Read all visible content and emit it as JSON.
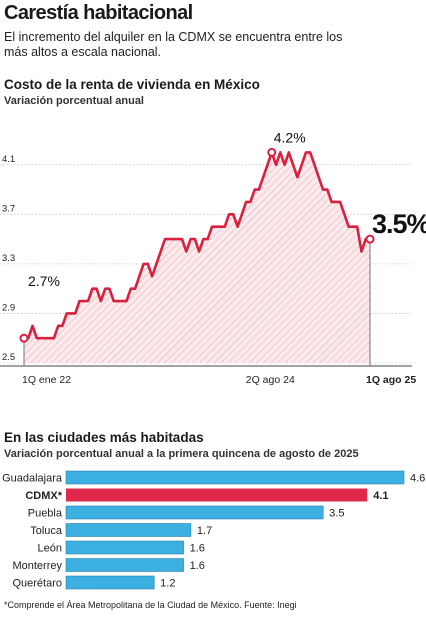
{
  "header": {
    "title": "Carestía habitacional",
    "intro": "El incremento del alquiler en la CDMX se encuentra entre los más altos a escala nacional."
  },
  "chart_data": [
    {
      "type": "line",
      "title": "Costo de la renta de vivienda en México",
      "subtitle": "Variación porcentual anual",
      "ylim": [
        2.5,
        4.3
      ],
      "yticks": [
        "2.5",
        "2.9",
        "3.3",
        "3.7",
        "4.1"
      ],
      "xticks": [
        "1Q ene 22",
        "2Q ago 24",
        "1Q ago 25"
      ],
      "grid": true,
      "annotations": [
        "2.7%",
        "4.2%",
        "3.5%"
      ],
      "values": [
        2.7,
        2.7,
        2.8,
        2.7,
        2.7,
        2.7,
        2.7,
        2.7,
        2.8,
        2.8,
        2.9,
        2.9,
        2.9,
        3.0,
        3.0,
        3.0,
        3.1,
        3.1,
        3.0,
        3.1,
        3.1,
        3.0,
        3.0,
        3.0,
        3.0,
        3.1,
        3.1,
        3.2,
        3.3,
        3.3,
        3.2,
        3.3,
        3.4,
        3.5,
        3.5,
        3.5,
        3.5,
        3.5,
        3.4,
        3.5,
        3.5,
        3.4,
        3.5,
        3.5,
        3.6,
        3.6,
        3.6,
        3.6,
        3.7,
        3.7,
        3.6,
        3.7,
        3.8,
        3.8,
        3.9,
        3.9,
        4.0,
        4.1,
        4.2,
        4.1,
        4.2,
        4.1,
        4.2,
        4.1,
        4.0,
        4.1,
        4.2,
        4.2,
        4.1,
        4.0,
        3.9,
        3.9,
        3.8,
        3.8,
        3.8,
        3.7,
        3.6,
        3.6,
        3.6,
        3.4,
        3.5,
        3.5
      ]
    },
    {
      "type": "bar",
      "orientation": "horizontal",
      "title": "En las ciudades más habitadas",
      "subtitle": "Variación porcentual anual a la primera quincena de agosto de 2025",
      "categories": [
        "Guadalajara",
        "CDMX*",
        "Puebla",
        "Toluca",
        "León",
        "Monterrey",
        "Querétaro"
      ],
      "values": [
        4.6,
        4.1,
        3.5,
        1.7,
        1.6,
        1.6,
        1.2
      ],
      "value_labels": [
        "4.6",
        "4.1",
        "3.5",
        "1.7",
        "1.6",
        "1.6",
        "1.2"
      ],
      "highlight": "CDMX*",
      "colors": {
        "default": "#3db0e2",
        "highlight": "#e0294a"
      }
    }
  ],
  "footnote": "*Comprende el Área Metropolitana de la Ciudad de México. Fuente: Inegi",
  "colors": {
    "line": "#d8203f",
    "fill_hatch": "#f2c8cd",
    "grid": "#c8c8c8",
    "bar_blue": "#3db0e2",
    "bar_red": "#e0294a"
  }
}
